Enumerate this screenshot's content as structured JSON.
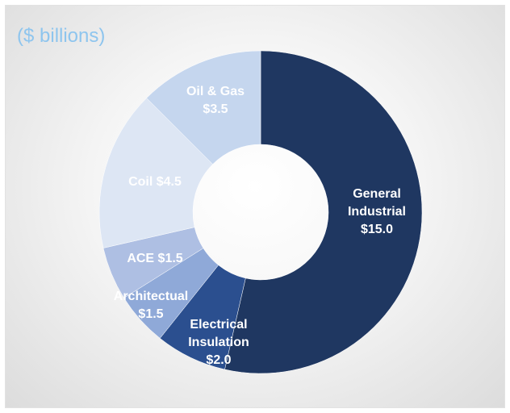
{
  "chart_data": {
    "type": "pie",
    "subtitle": "($ billions)",
    "categories": [
      "General Industrial",
      "Electrical Insulation",
      "Architectual",
      "ACE",
      "Coil",
      "Oil & Gas"
    ],
    "values": [
      15.0,
      2.0,
      1.5,
      1.5,
      4.5,
      3.5
    ],
    "labels": [
      [
        "General",
        "Industrial",
        "$15.0"
      ],
      [
        "Electrical",
        "Insulation",
        "$2.0"
      ],
      [
        "Architectual",
        "$1.5"
      ],
      [
        "ACE $1.5"
      ],
      [
        "Coil $4.5"
      ],
      [
        "Oil & Gas",
        "$3.5"
      ]
    ],
    "colors": [
      "#1f3761",
      "#2b4f8f",
      "#8fa9d8",
      "#aebfe3",
      "#dde6f4",
      "#c5d6ee"
    ],
    "donut": true,
    "legend": "none"
  }
}
